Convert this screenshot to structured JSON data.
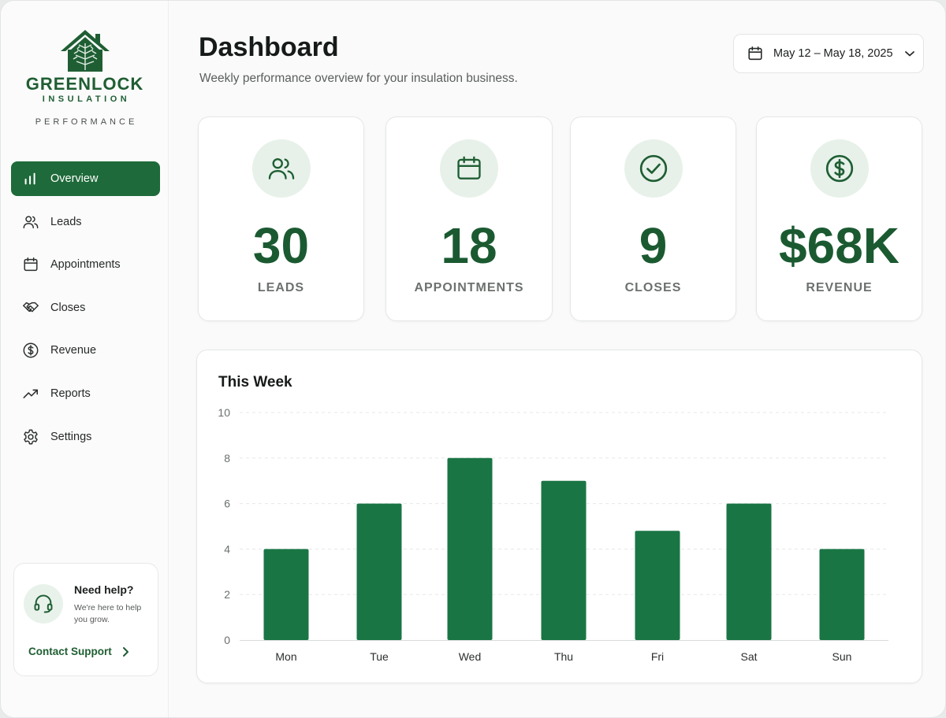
{
  "brand": {
    "name": "GREENLOCK",
    "sub": "INSULATION",
    "tagline": "PERFORMANCE",
    "color": "#1f5e33"
  },
  "sidebar": {
    "items": [
      {
        "label": "Overview",
        "icon": "bar-chart-icon",
        "active": true
      },
      {
        "label": "Leads",
        "icon": "users-icon",
        "active": false
      },
      {
        "label": "Appointments",
        "icon": "calendar-icon",
        "active": false
      },
      {
        "label": "Closes",
        "icon": "handshake-icon",
        "active": false
      },
      {
        "label": "Revenue",
        "icon": "dollar-circle-icon",
        "active": false
      },
      {
        "label": "Reports",
        "icon": "trending-up-icon",
        "active": false
      },
      {
        "label": "Settings",
        "icon": "gear-icon",
        "active": false
      }
    ],
    "help": {
      "title": "Need help?",
      "text": "We're here to help you grow.",
      "link": "Contact Support",
      "icon": "headset-icon"
    }
  },
  "header": {
    "title": "Dashboard",
    "subtitle": "Weekly performance overview for your insulation business.",
    "date_range": "May 12 – May 18, 2025"
  },
  "stats": [
    {
      "value": "30",
      "label": "LEADS",
      "icon": "users-icon"
    },
    {
      "value": "18",
      "label": "APPOINTMENTS",
      "icon": "calendar-icon"
    },
    {
      "value": "9",
      "label": "CLOSES",
      "icon": "check-circle-icon"
    },
    {
      "value": "$68K",
      "label": "REVENUE",
      "icon": "dollar-circle-icon"
    }
  ],
  "colors": {
    "accent": "#1e6a3a",
    "bar": "#1a7545",
    "stat_value": "#1b5a31",
    "icon_bg": "#e7f1ea"
  },
  "chart_data": {
    "type": "bar",
    "title": "This Week",
    "categories": [
      "Mon",
      "Tue",
      "Wed",
      "Thu",
      "Fri",
      "Sat",
      "Sun"
    ],
    "values": [
      4,
      6,
      8,
      7,
      4.8,
      6,
      4
    ],
    "ylim": [
      0,
      10
    ],
    "yticks": [
      0,
      2,
      4,
      6,
      8,
      10
    ],
    "grid": true,
    "xlabel": "",
    "ylabel": ""
  }
}
